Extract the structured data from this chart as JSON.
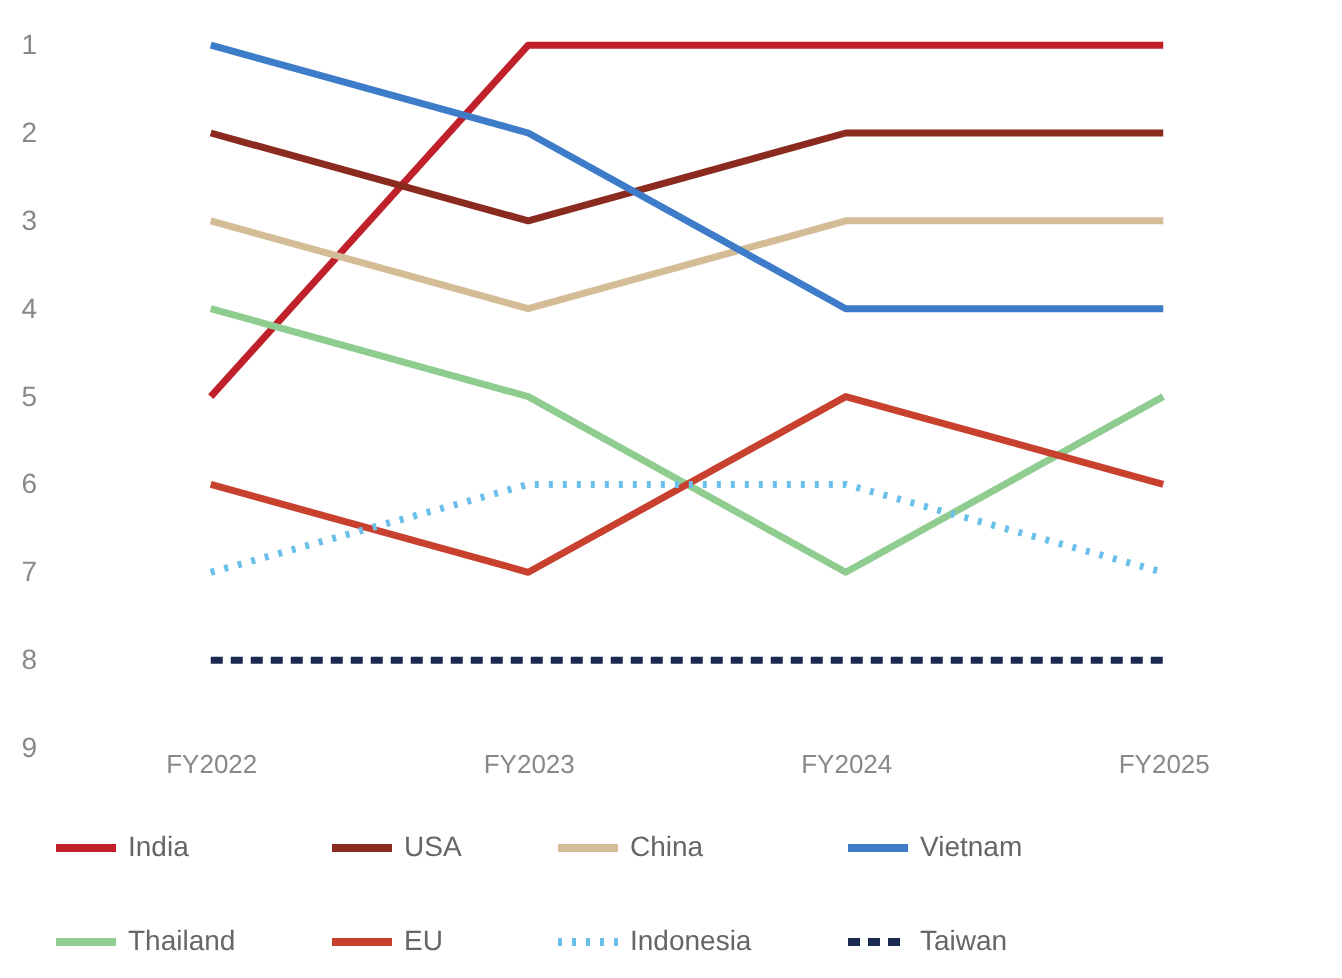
{
  "chart_data": {
    "type": "line",
    "categories": [
      "FY2022",
      "FY2023",
      "FY2024",
      "FY2025"
    ],
    "ylim": [
      9,
      0.6
    ],
    "yticks": [
      1,
      2,
      3,
      4,
      5,
      6,
      7,
      8,
      9
    ],
    "legend": "bottom",
    "series": [
      {
        "name": "India",
        "color": "#c0202a",
        "values": [
          5,
          1,
          1,
          1
        ],
        "line_style": "solid"
      },
      {
        "name": "USA",
        "color": "#8b2a1f",
        "values": [
          2,
          3,
          2,
          2
        ],
        "line_style": "solid"
      },
      {
        "name": "China",
        "color": "#d4bc96",
        "values": [
          3,
          4,
          3,
          3
        ],
        "line_style": "solid"
      },
      {
        "name": "Vietnam",
        "color": "#3d7cc9",
        "values": [
          1,
          2,
          4,
          4
        ],
        "line_style": "solid"
      },
      {
        "name": "Thailand",
        "color": "#8fcc8f",
        "values": [
          4,
          5,
          7,
          5
        ],
        "line_style": "solid"
      },
      {
        "name": "EU",
        "color": "#c8402e",
        "values": [
          6,
          7,
          5,
          6
        ],
        "line_style": "solid"
      },
      {
        "name": "Indonesia",
        "color": "#6ac0e8",
        "values": [
          7,
          6,
          6,
          7
        ],
        "line_style": "dotted"
      },
      {
        "name": "Taiwan",
        "color": "#1a2a50",
        "values": [
          8,
          8,
          8,
          8
        ],
        "line_style": "dashed"
      }
    ]
  }
}
